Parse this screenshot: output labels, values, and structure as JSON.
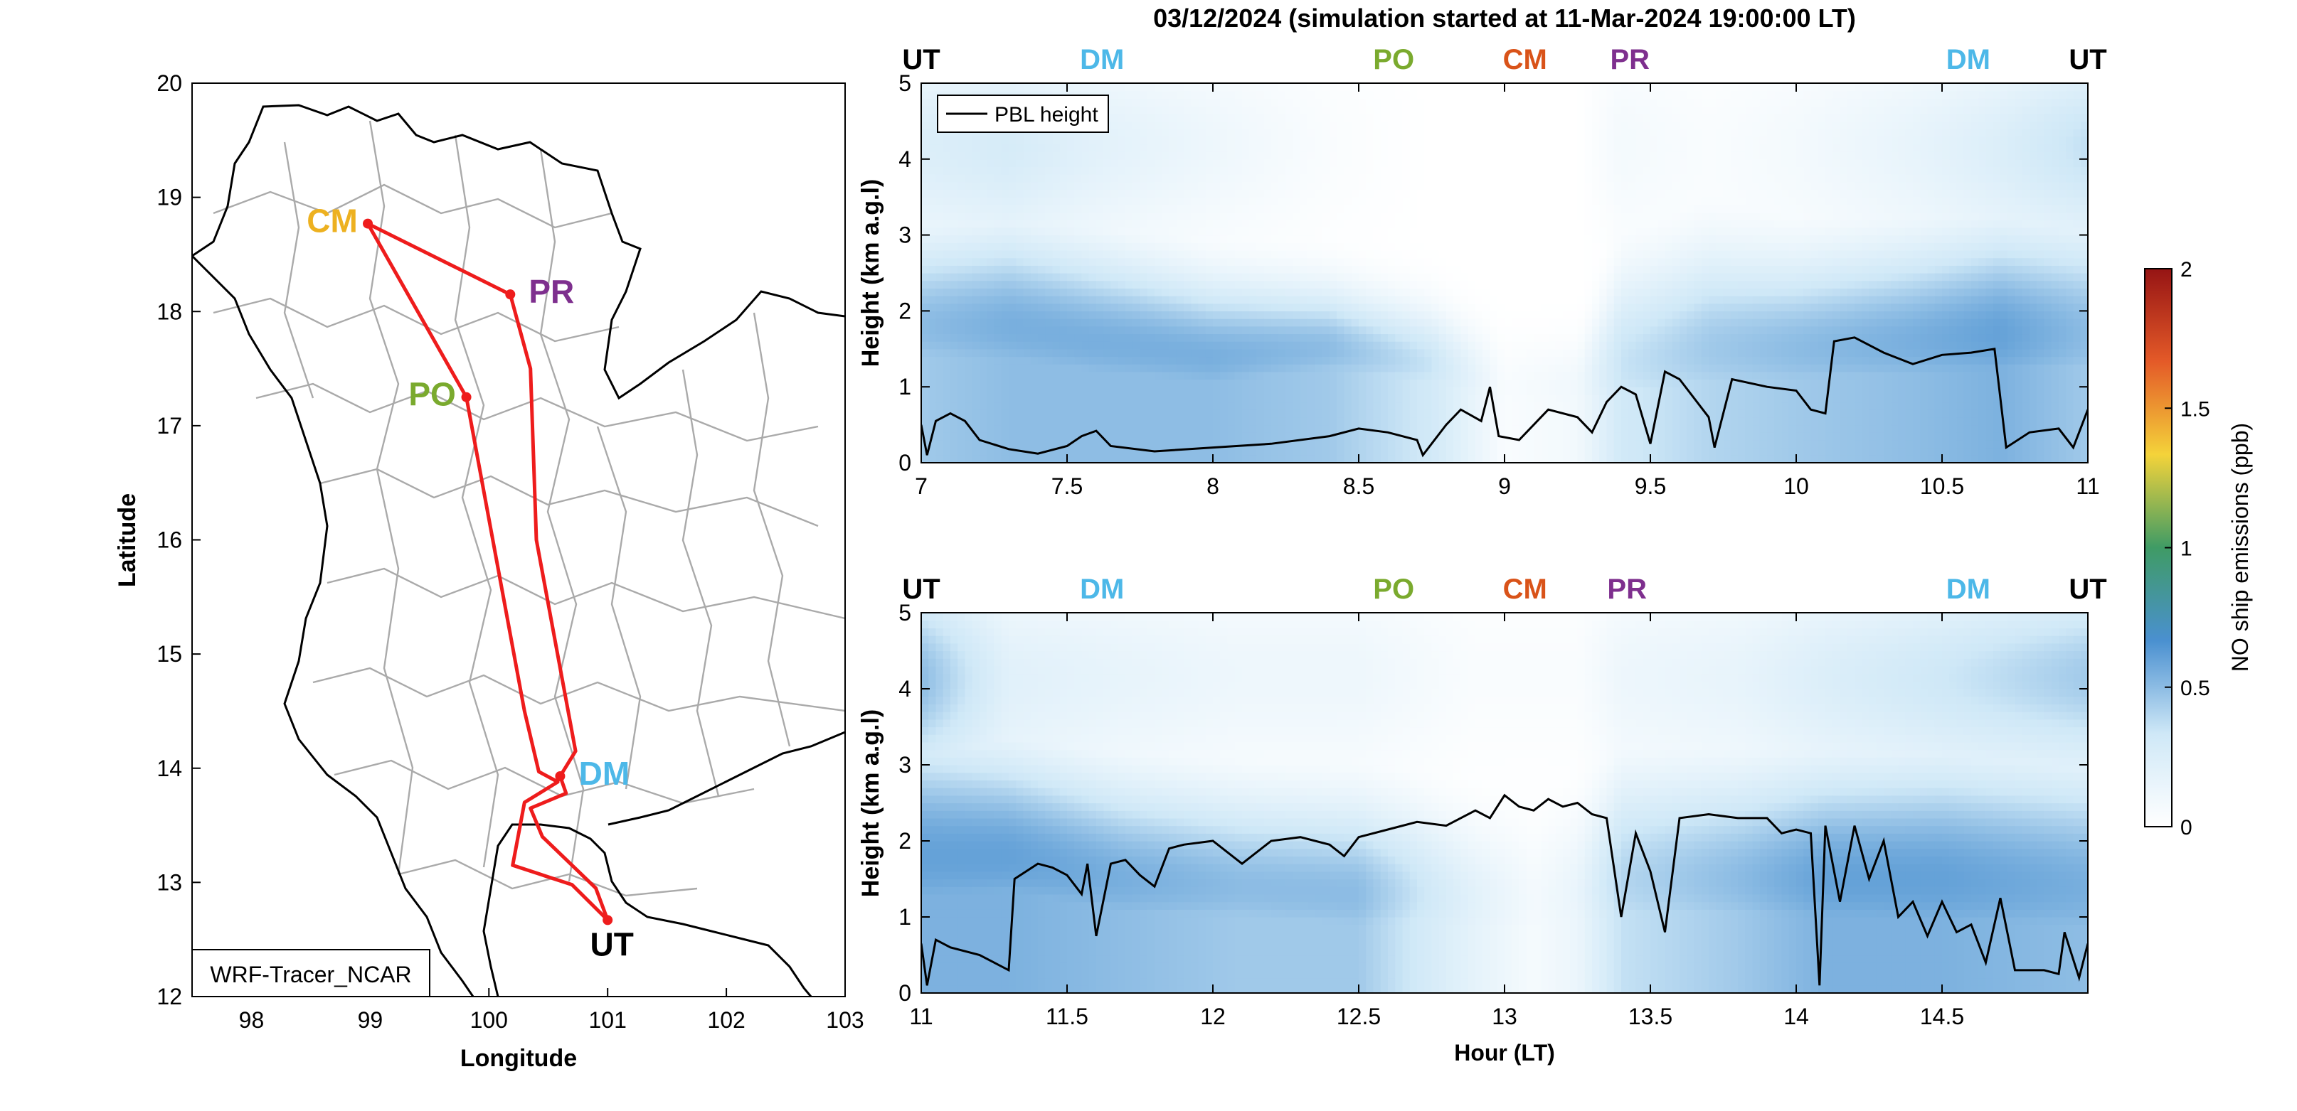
{
  "figure": {
    "title": "03/12/2024 (simulation started at 11-Mar-2024 19:00:00 LT)"
  },
  "colors": {
    "route": "#ee1c1c",
    "UT": "#000000",
    "DM": "#4db8e8",
    "PO": "#7aaa2e",
    "CM": "#d95319",
    "CM_map": "#edb120",
    "PR": "#7e2f8e",
    "pbl": "#000000",
    "boundary": "#aaaaaa",
    "coast": "#000000"
  },
  "chart_data": [
    {
      "type": "map",
      "name": "route-map",
      "xlabel": "Longitude",
      "ylabel": "Latitude",
      "xlim": [
        97.5,
        103
      ],
      "ylim": [
        12,
        20
      ],
      "xticks": [
        "98",
        "99",
        "100",
        "101",
        "102",
        "103"
      ],
      "yticks": [
        "12",
        "13",
        "14",
        "15",
        "16",
        "17",
        "18",
        "19",
        "20"
      ],
      "box_label": "WRF-Tracer_NCAR",
      "stations": [
        {
          "label": "CM",
          "lon": 98.98,
          "lat": 18.77,
          "color": "#edb120"
        },
        {
          "label": "PR",
          "lon": 100.18,
          "lat": 18.15,
          "color": "#7e2f8e"
        },
        {
          "label": "PO",
          "lon": 99.81,
          "lat": 17.25,
          "color": "#7aaa2e"
        },
        {
          "label": "DM",
          "lon": 100.6,
          "lat": 13.93,
          "color": "#4db8e8"
        },
        {
          "label": "UT",
          "lon": 101.0,
          "lat": 12.67,
          "color": "#000000"
        }
      ],
      "route": [
        [
          101.0,
          12.67
        ],
        [
          100.9,
          12.95
        ],
        [
          100.45,
          13.4
        ],
        [
          100.35,
          13.65
        ],
        [
          100.65,
          13.78
        ],
        [
          100.6,
          13.93
        ],
        [
          100.73,
          14.15
        ],
        [
          100.4,
          16.0
        ],
        [
          100.35,
          17.5
        ],
        [
          100.18,
          18.15
        ],
        [
          98.98,
          18.77
        ],
        [
          99.81,
          17.25
        ],
        [
          100.3,
          14.5
        ],
        [
          100.42,
          13.97
        ],
        [
          100.58,
          13.88
        ],
        [
          100.3,
          13.7
        ],
        [
          100.2,
          13.15
        ],
        [
          100.7,
          12.98
        ],
        [
          101.0,
          12.67
        ]
      ]
    },
    {
      "type": "heatmap",
      "name": "panel-top",
      "ylabel": "Height (km a.g.l)",
      "xlim": [
        7,
        11
      ],
      "ylim": [
        0,
        5
      ],
      "xticks": [
        "7",
        "7.5",
        "8",
        "8.5",
        "9",
        "9.5",
        "10",
        "10.5",
        "11"
      ],
      "yticks": [
        "0",
        "1",
        "2",
        "3",
        "4",
        "5"
      ],
      "legend": {
        "label": "PBL height",
        "placement": "top-left"
      },
      "top_labels": [
        {
          "text": "UT",
          "x": 7.0,
          "color": "#000000"
        },
        {
          "text": "DM",
          "x": 7.62,
          "color": "#4db8e8"
        },
        {
          "text": "PO",
          "x": 8.62,
          "color": "#7aaa2e"
        },
        {
          "text": "CM",
          "x": 9.07,
          "color": "#d95319"
        },
        {
          "text": "PR",
          "x": 9.43,
          "color": "#7e2f8e"
        },
        {
          "text": "DM",
          "x": 10.59,
          "color": "#4db8e8"
        },
        {
          "text": "UT",
          "x": 11.0,
          "color": "#000000"
        }
      ],
      "columns": [
        {
          "x": 7.0,
          "peak": 0.5,
          "center": 1.8,
          "spread": 1.2,
          "upper": 0.3
        },
        {
          "x": 7.3,
          "peak": 0.55,
          "center": 1.8,
          "spread": 1.3,
          "upper": 0.35
        },
        {
          "x": 7.6,
          "peak": 0.55,
          "center": 1.6,
          "spread": 1.2,
          "upper": 0.25
        },
        {
          "x": 8.0,
          "peak": 0.55,
          "center": 1.4,
          "spread": 1.0,
          "upper": 0.15
        },
        {
          "x": 8.4,
          "peak": 0.5,
          "center": 1.5,
          "spread": 0.8,
          "upper": 0.05
        },
        {
          "x": 8.75,
          "peak": 0.35,
          "center": 1.3,
          "spread": 0.7,
          "upper": 0.0
        },
        {
          "x": 9.0,
          "peak": 0.05,
          "center": 1.0,
          "spread": 0.6,
          "upper": 0.0
        },
        {
          "x": 9.25,
          "peak": 0.1,
          "center": 1.0,
          "spread": 0.6,
          "upper": 0.0
        },
        {
          "x": 9.4,
          "peak": 0.35,
          "center": 1.3,
          "spread": 1.2,
          "upper": 0.1
        },
        {
          "x": 9.7,
          "peak": 0.45,
          "center": 1.5,
          "spread": 1.3,
          "upper": 0.05
        },
        {
          "x": 10.0,
          "peak": 0.5,
          "center": 1.5,
          "spread": 1.2,
          "upper": 0.1
        },
        {
          "x": 10.4,
          "peak": 0.55,
          "center": 1.6,
          "spread": 1.3,
          "upper": 0.2
        },
        {
          "x": 10.7,
          "peak": 0.6,
          "center": 1.7,
          "spread": 1.4,
          "upper": 0.3
        },
        {
          "x": 11.0,
          "peak": 0.5,
          "center": 1.7,
          "spread": 1.4,
          "upper": 0.45
        }
      ],
      "pbl": [
        [
          7.0,
          0.5
        ],
        [
          7.02,
          0.1
        ],
        [
          7.05,
          0.55
        ],
        [
          7.1,
          0.65
        ],
        [
          7.15,
          0.55
        ],
        [
          7.2,
          0.3
        ],
        [
          7.3,
          0.18
        ],
        [
          7.4,
          0.12
        ],
        [
          7.5,
          0.22
        ],
        [
          7.55,
          0.35
        ],
        [
          7.6,
          0.42
        ],
        [
          7.65,
          0.22
        ],
        [
          7.8,
          0.15
        ],
        [
          8.0,
          0.2
        ],
        [
          8.2,
          0.25
        ],
        [
          8.4,
          0.35
        ],
        [
          8.5,
          0.45
        ],
        [
          8.6,
          0.4
        ],
        [
          8.7,
          0.3
        ],
        [
          8.72,
          0.1
        ],
        [
          8.8,
          0.5
        ],
        [
          8.85,
          0.7
        ],
        [
          8.92,
          0.55
        ],
        [
          8.95,
          1.0
        ],
        [
          8.98,
          0.35
        ],
        [
          9.05,
          0.3
        ],
        [
          9.15,
          0.7
        ],
        [
          9.25,
          0.6
        ],
        [
          9.3,
          0.4
        ],
        [
          9.35,
          0.8
        ],
        [
          9.4,
          1.0
        ],
        [
          9.45,
          0.9
        ],
        [
          9.5,
          0.25
        ],
        [
          9.55,
          1.2
        ],
        [
          9.6,
          1.1
        ],
        [
          9.7,
          0.6
        ],
        [
          9.72,
          0.2
        ],
        [
          9.78,
          1.1
        ],
        [
          9.9,
          1.0
        ],
        [
          10.0,
          0.95
        ],
        [
          10.05,
          0.7
        ],
        [
          10.1,
          0.65
        ],
        [
          10.13,
          1.6
        ],
        [
          10.2,
          1.65
        ],
        [
          10.3,
          1.45
        ],
        [
          10.4,
          1.3
        ],
        [
          10.5,
          1.42
        ],
        [
          10.6,
          1.45
        ],
        [
          10.68,
          1.5
        ],
        [
          10.72,
          0.2
        ],
        [
          10.8,
          0.4
        ],
        [
          10.9,
          0.45
        ],
        [
          10.95,
          0.2
        ],
        [
          11.0,
          0.7
        ]
      ]
    },
    {
      "type": "heatmap",
      "name": "panel-bottom",
      "xlabel": "Hour (LT)",
      "ylabel": "Height (km a.g.l)",
      "xlim": [
        11,
        15
      ],
      "ylim": [
        0,
        5
      ],
      "xticks": [
        "11",
        "11.5",
        "12",
        "12.5",
        "13",
        "13.5",
        "14",
        "14.5"
      ],
      "yticks": [
        "0",
        "1",
        "2",
        "3",
        "4",
        "5"
      ],
      "top_labels": [
        {
          "text": "UT",
          "x": 11.0,
          "color": "#000000"
        },
        {
          "text": "DM",
          "x": 11.62,
          "color": "#4db8e8"
        },
        {
          "text": "PO",
          "x": 12.62,
          "color": "#7aaa2e"
        },
        {
          "text": "CM",
          "x": 13.07,
          "color": "#d95319"
        },
        {
          "text": "PR",
          "x": 13.42,
          "color": "#7e2f8e"
        },
        {
          "text": "DM",
          "x": 14.59,
          "color": "#4db8e8"
        },
        {
          "text": "UT",
          "x": 15.0,
          "color": "#000000"
        }
      ],
      "columns": [
        {
          "x": 11.0,
          "peak": 0.6,
          "center": 1.8,
          "spread": 1.6,
          "upper": 0.6
        },
        {
          "x": 11.3,
          "peak": 0.6,
          "center": 1.8,
          "spread": 1.4,
          "upper": 0.25
        },
        {
          "x": 11.7,
          "peak": 0.55,
          "center": 1.5,
          "spread": 1.3,
          "upper": 0.2
        },
        {
          "x": 12.1,
          "peak": 0.5,
          "center": 1.4,
          "spread": 1.2,
          "upper": 0.15
        },
        {
          "x": 12.5,
          "peak": 0.5,
          "center": 1.3,
          "spread": 1.2,
          "upper": 0.15
        },
        {
          "x": 12.7,
          "peak": 0.35,
          "center": 1.3,
          "spread": 1.1,
          "upper": 0.1
        },
        {
          "x": 12.9,
          "peak": 0.2,
          "center": 1.2,
          "spread": 1.0,
          "upper": 0.05
        },
        {
          "x": 13.1,
          "peak": 0.08,
          "center": 1.2,
          "spread": 1.0,
          "upper": 0.05
        },
        {
          "x": 13.25,
          "peak": 0.15,
          "center": 1.3,
          "spread": 1.1,
          "upper": 0.05
        },
        {
          "x": 13.4,
          "peak": 0.4,
          "center": 1.5,
          "spread": 1.4,
          "upper": 0.15
        },
        {
          "x": 13.8,
          "peak": 0.5,
          "center": 1.5,
          "spread": 1.4,
          "upper": 0.2
        },
        {
          "x": 14.1,
          "peak": 0.6,
          "center": 1.5,
          "spread": 1.5,
          "upper": 0.3
        },
        {
          "x": 14.5,
          "peak": 0.6,
          "center": 1.5,
          "spread": 1.6,
          "upper": 0.4
        },
        {
          "x": 15.0,
          "peak": 0.55,
          "center": 1.4,
          "spread": 1.6,
          "upper": 0.55
        }
      ],
      "pbl": [
        [
          11.0,
          0.65
        ],
        [
          11.02,
          0.1
        ],
        [
          11.05,
          0.7
        ],
        [
          11.1,
          0.6
        ],
        [
          11.2,
          0.5
        ],
        [
          11.3,
          0.3
        ],
        [
          11.32,
          1.5
        ],
        [
          11.4,
          1.7
        ],
        [
          11.45,
          1.65
        ],
        [
          11.5,
          1.55
        ],
        [
          11.55,
          1.3
        ],
        [
          11.57,
          1.7
        ],
        [
          11.6,
          0.75
        ],
        [
          11.65,
          1.7
        ],
        [
          11.7,
          1.75
        ],
        [
          11.75,
          1.55
        ],
        [
          11.8,
          1.4
        ],
        [
          11.85,
          1.9
        ],
        [
          11.9,
          1.95
        ],
        [
          12.0,
          2.0
        ],
        [
          12.1,
          1.7
        ],
        [
          12.2,
          2.0
        ],
        [
          12.3,
          2.05
        ],
        [
          12.4,
          1.95
        ],
        [
          12.45,
          1.8
        ],
        [
          12.5,
          2.05
        ],
        [
          12.6,
          2.15
        ],
        [
          12.7,
          2.25
        ],
        [
          12.8,
          2.2
        ],
        [
          12.9,
          2.4
        ],
        [
          12.95,
          2.3
        ],
        [
          13.0,
          2.6
        ],
        [
          13.05,
          2.45
        ],
        [
          13.1,
          2.4
        ],
        [
          13.15,
          2.55
        ],
        [
          13.2,
          2.45
        ],
        [
          13.25,
          2.5
        ],
        [
          13.3,
          2.35
        ],
        [
          13.35,
          2.3
        ],
        [
          13.4,
          1.0
        ],
        [
          13.45,
          2.1
        ],
        [
          13.5,
          1.6
        ],
        [
          13.55,
          0.8
        ],
        [
          13.6,
          2.3
        ],
        [
          13.7,
          2.35
        ],
        [
          13.8,
          2.3
        ],
        [
          13.9,
          2.3
        ],
        [
          13.95,
          2.1
        ],
        [
          14.0,
          2.15
        ],
        [
          14.05,
          2.1
        ],
        [
          14.08,
          0.1
        ],
        [
          14.1,
          2.2
        ],
        [
          14.15,
          1.2
        ],
        [
          14.2,
          2.2
        ],
        [
          14.25,
          1.5
        ],
        [
          14.3,
          2.0
        ],
        [
          14.35,
          1.0
        ],
        [
          14.4,
          1.2
        ],
        [
          14.45,
          0.75
        ],
        [
          14.5,
          1.2
        ],
        [
          14.55,
          0.8
        ],
        [
          14.6,
          0.9
        ],
        [
          14.65,
          0.4
        ],
        [
          14.7,
          1.25
        ],
        [
          14.75,
          0.3
        ],
        [
          14.85,
          0.3
        ],
        [
          14.9,
          0.25
        ],
        [
          14.92,
          0.8
        ],
        [
          14.97,
          0.2
        ],
        [
          15.0,
          0.65
        ]
      ]
    }
  ],
  "colorbar": {
    "label": "NO ship emissions (ppb)",
    "ticks": [
      "0",
      "0.5",
      "1",
      "1.5",
      "2"
    ],
    "range": [
      0,
      2
    ],
    "stops": [
      "#ffffff",
      "#cfe8f7",
      "#4a90d0",
      "#3f9b65",
      "#f4d33a",
      "#e45a28",
      "#961414"
    ]
  }
}
